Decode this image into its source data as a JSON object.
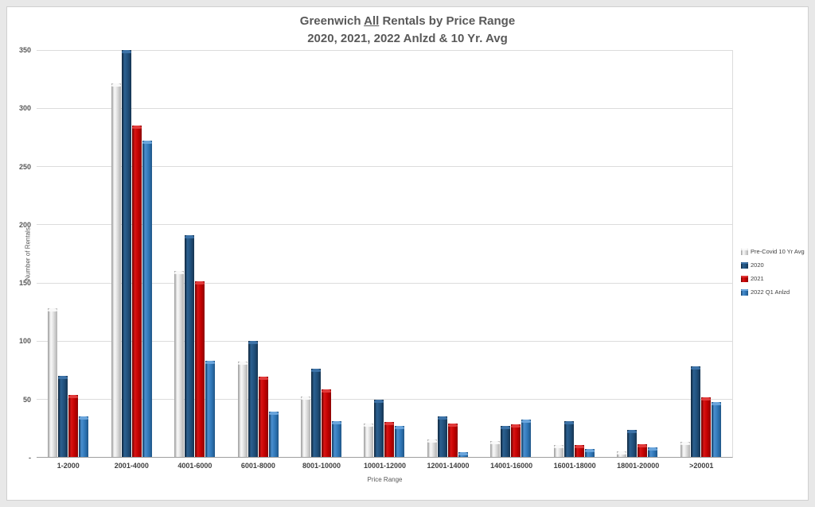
{
  "chart_data": {
    "type": "bar",
    "title": {
      "line1_prefix": "Greenwich ",
      "line1_underlined": "All",
      "line1_suffix": " Rentals by Price Range",
      "line2": "2020, 2021, 2022 Anlzd & 10 Yr. Avg"
    },
    "xlabel": "Price Range",
    "ylabel": "Number of Rentals",
    "ylim": [
      0,
      350
    ],
    "ytick_step": 50,
    "ytick_labels_top_to_bottom": [
      "350",
      "300",
      "250",
      "200",
      "150",
      "100",
      "50",
      "-"
    ],
    "grid": true,
    "legend_position": "right",
    "categories": [
      "1-2000",
      "2001-4000",
      "4001-6000",
      "6001-8000",
      "8001-10000",
      "10001-12000",
      "12001-14000",
      "14001-16000",
      "16001-18000",
      "18001-20000",
      ">20001"
    ],
    "series": [
      {
        "name": "Pre-Covid 10 Yr Avg",
        "color": "#D9D9D9",
        "values": [
          128,
          321,
          160,
          82,
          52,
          29,
          15,
          14,
          10,
          5,
          13
        ]
      },
      {
        "name": "2020",
        "color": "#1F4E79",
        "values": [
          70,
          350,
          191,
          100,
          76,
          49,
          35,
          27,
          31,
          23,
          78
        ]
      },
      {
        "name": "2021",
        "color": "#C00000",
        "values": [
          53,
          285,
          151,
          69,
          58,
          30,
          29,
          28,
          10,
          11,
          51
        ]
      },
      {
        "name": "2022 Q1 Anlzd",
        "color": "#2E75B6",
        "values": [
          35,
          272,
          83,
          39,
          31,
          27,
          4,
          32,
          7,
          8,
          47
        ]
      }
    ]
  }
}
